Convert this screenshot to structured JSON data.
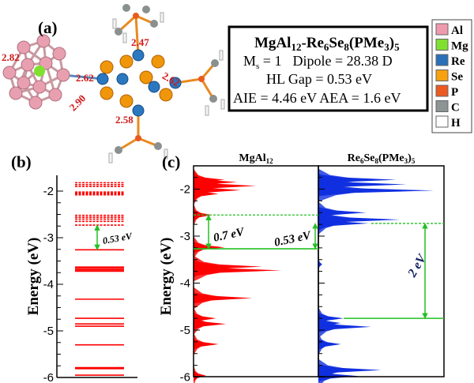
{
  "panel_labels": {
    "a": "(a)",
    "b": "(b)",
    "c": "(c)"
  },
  "structure": {
    "bond_labels": [
      "2.82",
      "2.62",
      "2.90",
      "2.47",
      "2.62",
      "2.58"
    ],
    "colors": {
      "Al": "#e8a0b0",
      "Mg": "#7fe030",
      "Re": "#2a78c0",
      "Se": "#f0960a",
      "P": "#e85a20",
      "C": "#8a9090",
      "H": "#f4f4f4"
    }
  },
  "info_box": {
    "title": "MgAl12-Re6Se8(PMe3)5",
    "title_parts": [
      "MgAl",
      "12",
      "-Re",
      "6",
      "Se",
      "8",
      "(PMe",
      "3",
      ")",
      "5"
    ],
    "ms_label": "M",
    "ms_sub": "s",
    "ms_value": " = 1",
    "dipole": "Dipole  = 28.38 D",
    "hl_gap": "HL Gap  = 0.53 eV",
    "aie_aea": "AIE = 4.46 eV AEA = 1.6 eV"
  },
  "legend": [
    {
      "label": "Al",
      "color": "#f09ab0"
    },
    {
      "label": "Mg",
      "color": "#80e030"
    },
    {
      "label": "Re",
      "color": "#2a70b8"
    },
    {
      "label": "Se",
      "color": "#f7a010"
    },
    {
      "label": "P",
      "color": "#ec5a22"
    },
    {
      "label": "C",
      "color": "#8c9494"
    },
    {
      "label": "H",
      "color": "#ffffff"
    }
  ],
  "chart_data": [
    {
      "type": "energy-levels",
      "panel": "b",
      "ylabel": "Energy (eV)",
      "ylim": [
        -6,
        -1.7
      ],
      "yticks": [
        "-2",
        "-3",
        "-4",
        "-5",
        "-6"
      ],
      "unoccupied_levels": [
        -1.82,
        -1.86,
        -1.9,
        -2.02,
        -2.04,
        -2.06,
        -2.08,
        -2.52,
        -2.56,
        -2.6,
        -2.65,
        -2.73
      ],
      "occupied_levels": [
        -3.26,
        -3.63,
        -3.66,
        -3.69,
        -3.72,
        -4.32,
        -4.73,
        -4.85,
        -4.9,
        -5.3,
        -5.79,
        -5.81,
        -5.95
      ],
      "gap_annotation": "0.53 eV",
      "color": "#ff0000"
    },
    {
      "type": "area",
      "panel": "c",
      "ylabel": "Energy (eV)",
      "ylim": [
        -6,
        -1.5
      ],
      "yticks": [
        "-2",
        "-3",
        "-4",
        "-5",
        "-6"
      ],
      "series": [
        {
          "name": "MgAl12",
          "title_parts": [
            "MgAl",
            "12"
          ],
          "color": "#ff0000",
          "peaks": [
            [
              -1.8,
              0.25
            ],
            [
              -1.85,
              0.35
            ],
            [
              -1.93,
              0.5
            ],
            [
              -2.02,
              0.38
            ],
            [
              -2.1,
              0.2
            ],
            [
              -2.55,
              0.15
            ],
            [
              -3.24,
              0.25
            ],
            [
              -3.65,
              0.55
            ],
            [
              -3.73,
              0.7
            ],
            [
              -4.32,
              0.47
            ],
            [
              -4.75,
              0.18
            ],
            [
              -4.87,
              0.26
            ],
            [
              -5.3,
              0.2
            ],
            [
              -5.97,
              0.1
            ]
          ],
          "lumo": -2.55,
          "homo": -3.27,
          "gap_label": "0.7 eV"
        },
        {
          "name": "Re6Se8(PMe3)5",
          "title_parts": [
            "Re",
            "6",
            "Se",
            "8",
            "(PMe",
            "3",
            ")",
            "5"
          ],
          "color": "#1030e0",
          "peaks": [
            [
              -1.8,
              0.62
            ],
            [
              -1.9,
              0.7
            ],
            [
              -2.03,
              0.92
            ],
            [
              -2.5,
              0.38
            ],
            [
              -2.65,
              0.65
            ],
            [
              -2.73,
              0.4
            ],
            [
              -3.6,
              0.03
            ],
            [
              -4.75,
              0.2
            ],
            [
              -4.85,
              0.18
            ],
            [
              -4.93,
              0.42
            ],
            [
              -5.3,
              0.18
            ],
            [
              -5.85,
              0.5
            ],
            [
              -5.98,
              0.32
            ]
          ],
          "lumo": -2.73,
          "homo": -4.75,
          "gap_label": "2 eV"
        }
      ],
      "composite_gap_label": "0.53 eV",
      "marker_color": "#22c022"
    }
  ]
}
